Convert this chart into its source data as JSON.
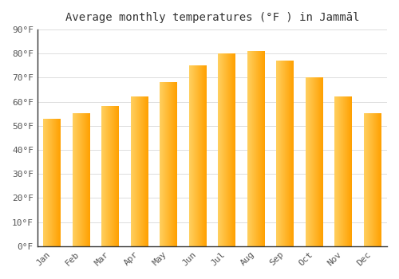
{
  "title": "Average monthly temperatures (°F ) in Jammāl",
  "months": [
    "Jan",
    "Feb",
    "Mar",
    "Apr",
    "May",
    "Jun",
    "Jul",
    "Aug",
    "Sep",
    "Oct",
    "Nov",
    "Dec"
  ],
  "values": [
    53,
    55,
    58,
    62,
    68,
    75,
    80,
    81,
    77,
    70,
    62,
    55
  ],
  "bar_color_left": "#FFD060",
  "bar_color_right": "#FFA000",
  "background_color": "#FFFFFF",
  "grid_color": "#DDDDDD",
  "ylim": [
    0,
    90
  ],
  "yticks": [
    0,
    10,
    20,
    30,
    40,
    50,
    60,
    70,
    80,
    90
  ],
  "ytick_labels": [
    "0°F",
    "10°F",
    "20°F",
    "30°F",
    "40°F",
    "50°F",
    "60°F",
    "70°F",
    "80°F",
    "90°F"
  ],
  "title_fontsize": 10,
  "tick_fontsize": 8,
  "bar_width": 0.6
}
